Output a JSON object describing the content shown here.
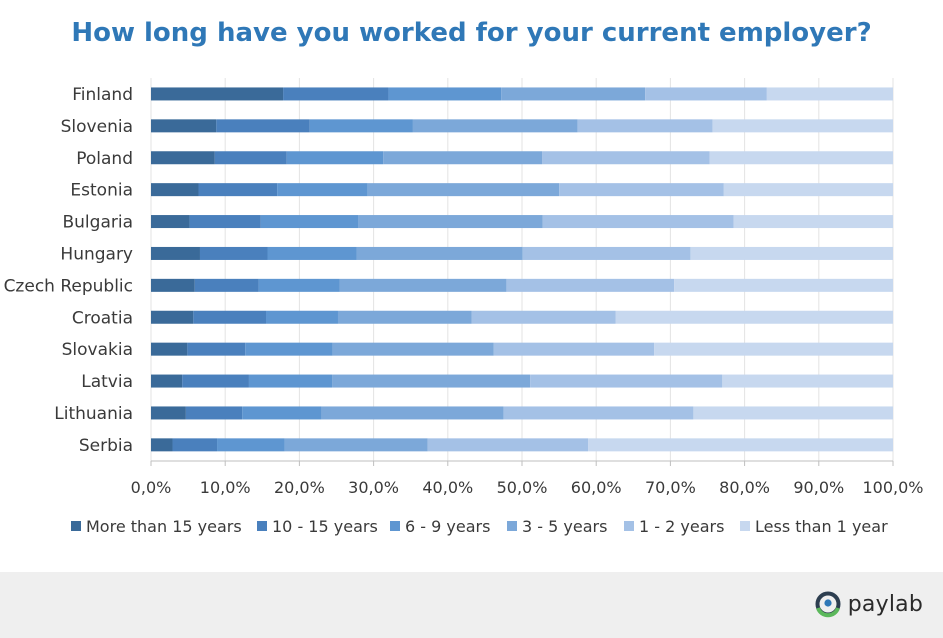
{
  "chart_data": {
    "type": "bar",
    "orientation": "horizontal",
    "stacked": "percent",
    "title": "How long have you worked for your current employer?",
    "categories": [
      "Finland",
      "Slovenia",
      "Poland",
      "Estonia",
      "Bulgaria",
      "Hungary",
      "Czech Republic",
      "Croatia",
      "Slovakia",
      "Latvia",
      "Lithuania",
      "Serbia"
    ],
    "series": [
      {
        "name": "More than 15 years",
        "color": "#3a6a99",
        "values": [
          17.8,
          8.8,
          8.6,
          6.4,
          5.2,
          6.6,
          5.9,
          5.7,
          4.9,
          4.2,
          4.7,
          2.9
        ]
      },
      {
        "name": "10 - 15 years",
        "color": "#4a80bd",
        "values": [
          14.2,
          12.6,
          9.7,
          10.6,
          9.6,
          9.1,
          8.6,
          9.8,
          7.8,
          9.0,
          7.6,
          6.0
        ]
      },
      {
        "name": "6 - 9 years",
        "color": "#5e96d1",
        "values": [
          15.2,
          13.9,
          13.0,
          12.2,
          13.1,
          12.0,
          10.9,
          9.7,
          11.8,
          11.2,
          10.7,
          9.1
        ]
      },
      {
        "name": "3 - 5 years",
        "color": "#7ca8d9",
        "values": [
          19.4,
          22.2,
          21.4,
          25.8,
          24.9,
          22.4,
          22.5,
          18.0,
          21.7,
          26.7,
          24.5,
          19.3
        ]
      },
      {
        "name": "1 - 2 years",
        "color": "#a4c1e6",
        "values": [
          16.4,
          18.2,
          22.6,
          22.2,
          25.7,
          22.6,
          22.6,
          19.4,
          21.6,
          25.9,
          25.6,
          21.6
        ]
      },
      {
        "name": "Less than 1 year",
        "color": "#c7d8ef",
        "values": [
          17.0,
          24.3,
          24.7,
          22.8,
          21.5,
          27.3,
          29.5,
          37.4,
          32.2,
          23.0,
          26.9,
          41.1
        ]
      }
    ],
    "xlim": [
      0,
      100
    ],
    "xticks": [
      "0,0%",
      "10,0%",
      "20,0%",
      "30,0%",
      "40,0%",
      "50,0%",
      "60,0%",
      "70,0%",
      "80,0%",
      "90,0%",
      "100,0%"
    ],
    "grid": true,
    "legend": "bottom"
  },
  "footer": {
    "brand": "paylab",
    "logo_colors": {
      "ring": "#2d3e50",
      "accent": "#5cb85c",
      "dot": "#2f78b7"
    }
  }
}
